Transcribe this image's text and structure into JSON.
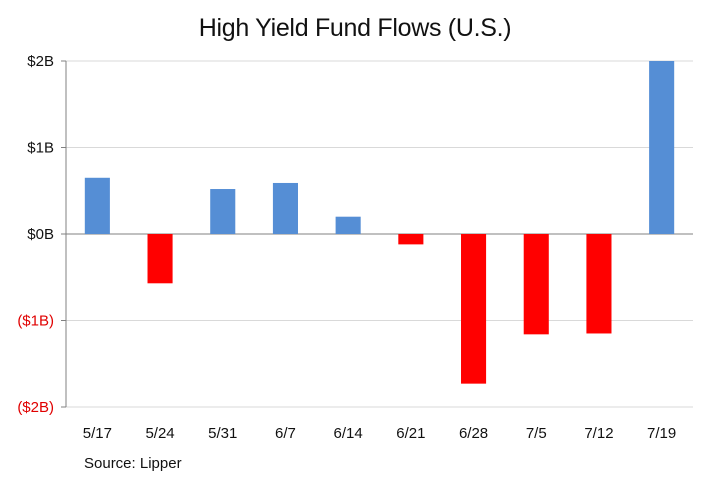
{
  "chart_data": {
    "type": "bar",
    "title": "High Yield Fund Flows (U.S.)",
    "source": "Source: Lipper",
    "categories": [
      "5/17",
      "5/24",
      "5/31",
      "6/7",
      "6/14",
      "6/21",
      "6/28",
      "7/5",
      "7/12",
      "7/19"
    ],
    "values": [
      0.65,
      -0.57,
      0.52,
      0.59,
      0.2,
      -0.12,
      -1.73,
      -1.16,
      -1.15,
      2.0
    ],
    "ylim": [
      -2,
      2
    ],
    "yticks": [
      2,
      1,
      0,
      -1,
      -2
    ],
    "ytick_labels": [
      "$2B",
      "$1B",
      "$0B",
      "($1B)",
      "($2B)"
    ],
    "xlabel": "",
    "ylabel": "",
    "grid": true,
    "legend": "none",
    "colors": {
      "positive": "#558ED5",
      "negative": "#FF0000",
      "positive_tick_label": "#111111",
      "negative_tick_label": "#E00000",
      "gridline": "#D9D9D9",
      "axis": "#808080"
    }
  }
}
